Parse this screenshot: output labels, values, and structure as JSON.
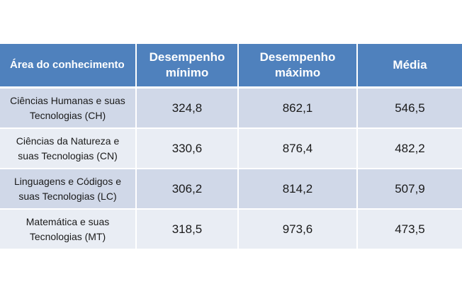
{
  "table": {
    "headers": [
      "Área do conhecimento",
      "Desempenho\nmínimo",
      "Desempenho\nmáximo",
      "Média"
    ],
    "rows": [
      {
        "area_line1": "Ciências Humanas e suas",
        "area_line2": "Tecnologias (CH)",
        "min": "324,8",
        "max": "862,1",
        "media": "546,5"
      },
      {
        "area_line1": "Ciências da Natureza e",
        "area_line2": "suas Tecnologias (CN)",
        "min": "330,6",
        "max": "876,4",
        "media": "482,2"
      },
      {
        "area_line1": "Linguagens e Códigos e",
        "area_line2": "suas Tecnologias (LC)",
        "min": "306,2",
        "max": "814,2",
        "media": "507,9"
      },
      {
        "area_line1": "Matemática e suas",
        "area_line2": "Tecnologias (MT)",
        "min": "318,5",
        "max": "973,6",
        "media": "473,5"
      }
    ],
    "colors": {
      "header_bg": "#4f81bd",
      "row_odd_bg": "#d0d8e8",
      "row_even_bg": "#e9edf4"
    }
  }
}
